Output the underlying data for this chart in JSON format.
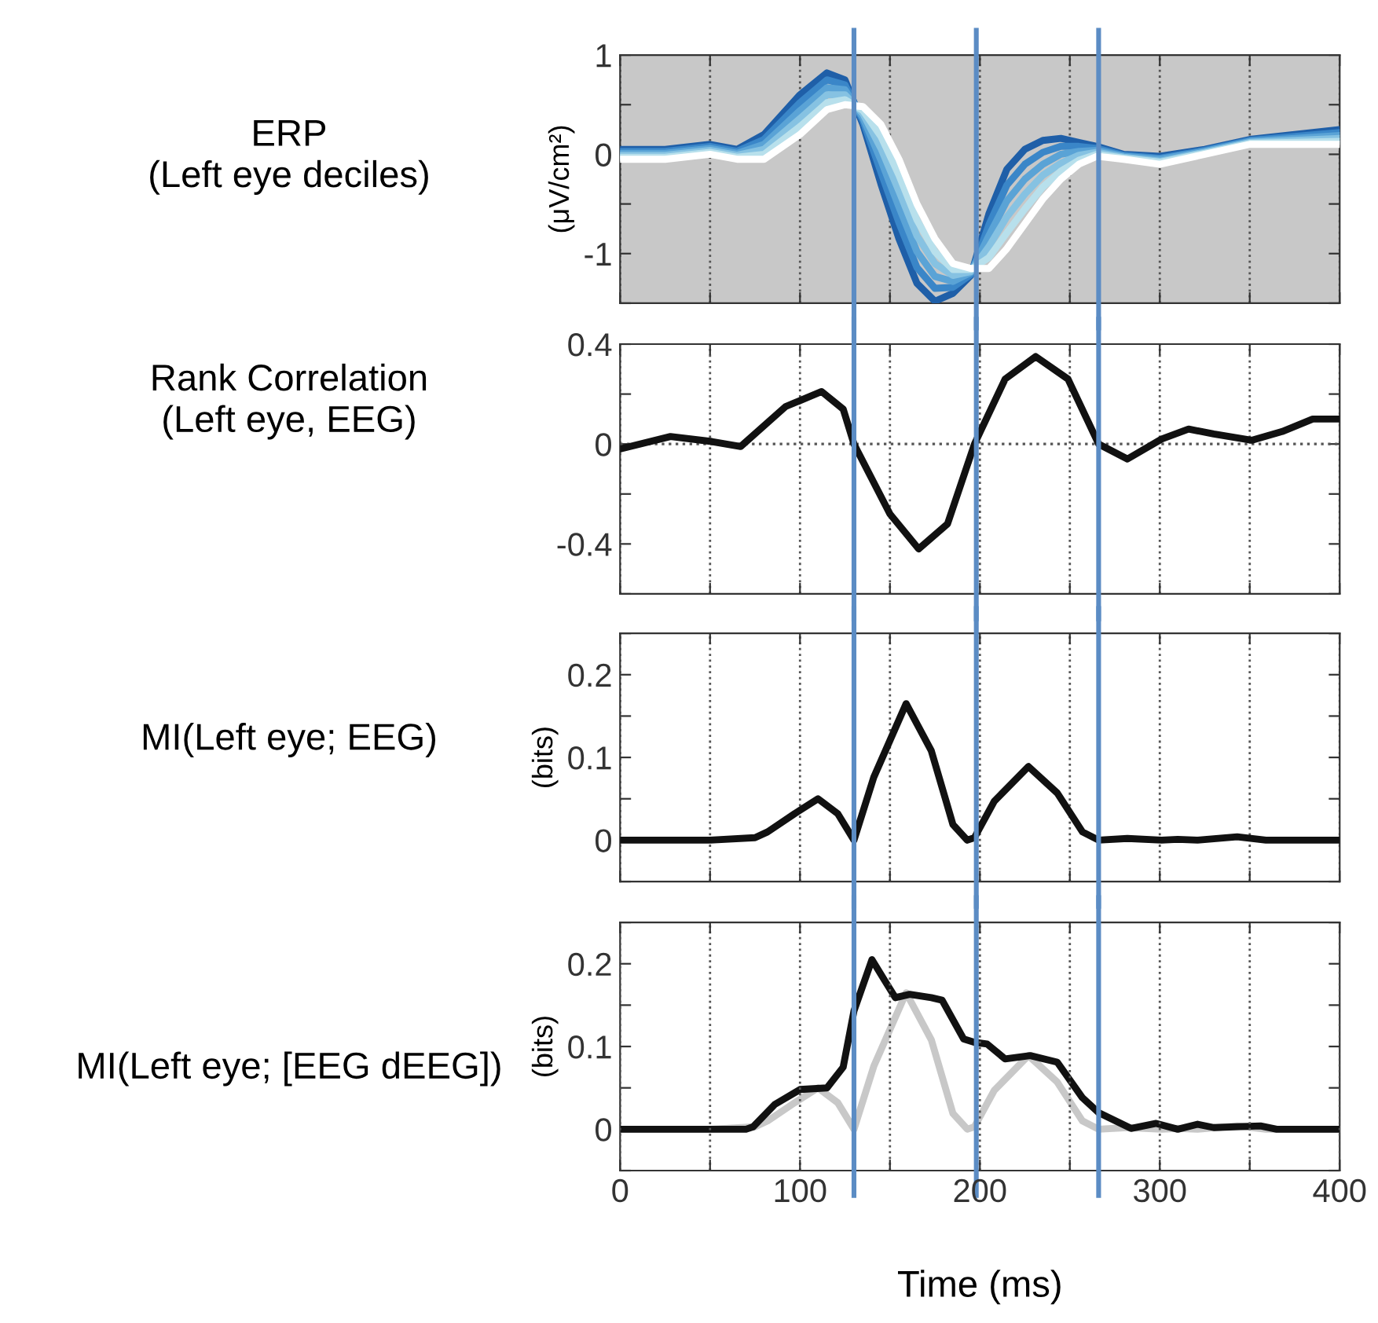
{
  "chart_data": [
    {
      "type": "line",
      "title": "ERP\n(Left eye deciles)",
      "ylabel": "(μV/cm²)",
      "tick_labels": "y",
      "grid": "x",
      "line_style": "solid",
      "x": [
        0,
        25,
        50,
        65,
        80,
        100,
        115,
        125,
        135,
        145,
        155,
        165,
        175,
        185,
        195,
        205,
        215,
        225,
        235,
        245,
        255,
        265,
        280,
        300,
        325,
        350,
        375,
        400
      ],
      "series": [
        {
          "color": "#1f5fa8",
          "values": [
            0.05,
            0.05,
            0.1,
            0.05,
            0.2,
            0.6,
            0.82,
            0.75,
            0.3,
            -0.3,
            -0.85,
            -1.3,
            -1.48,
            -1.4,
            -1.22,
            -0.6,
            -0.15,
            0.05,
            0.14,
            0.16,
            0.12,
            0.08,
            0.0,
            -0.02,
            0.05,
            0.15,
            0.2,
            0.25
          ]
        },
        {
          "color": "#3a86c8",
          "values": [
            0.03,
            0.03,
            0.08,
            0.03,
            0.15,
            0.52,
            0.75,
            0.7,
            0.34,
            -0.18,
            -0.69,
            -1.14,
            -1.35,
            -1.34,
            -1.21,
            -0.71,
            -0.31,
            -0.1,
            0.02,
            0.08,
            0.08,
            0.06,
            -0.01,
            -0.04,
            0.04,
            0.14,
            0.18,
            0.22
          ]
        },
        {
          "color": "#5aa3d6",
          "values": [
            0.01,
            0.01,
            0.06,
            0.01,
            0.1,
            0.44,
            0.67,
            0.65,
            0.37,
            -0.06,
            -0.53,
            -0.98,
            -1.23,
            -1.28,
            -1.19,
            -0.82,
            -0.47,
            -0.25,
            -0.1,
            0,
            0.03,
            0.04,
            -0.02,
            -0.05,
            0.03,
            0.13,
            0.16,
            0.19
          ]
        },
        {
          "color": "#86c2e2",
          "values": [
            -0.01,
            -0.01,
            0.04,
            -0.01,
            0.05,
            0.36,
            0.6,
            0.6,
            0.41,
            0.06,
            -0.37,
            -0.82,
            -1.1,
            -1.22,
            -1.18,
            -0.93,
            -0.63,
            -0.4,
            -0.21,
            -0.09,
            -0.01,
            0.02,
            -0.03,
            -0.07,
            0.02,
            0.12,
            0.14,
            0.16
          ]
        },
        {
          "color": "#b8e0ec",
          "values": [
            -0.03,
            -0.03,
            0.02,
            -0.03,
            0.0,
            0.28,
            0.52,
            0.55,
            0.44,
            0.18,
            -0.21,
            -0.66,
            -0.98,
            -1.16,
            -1.16,
            -1.04,
            -0.79,
            -0.55,
            -0.33,
            -0.17,
            -0.06,
            0.0,
            -0.04,
            -0.08,
            0.01,
            0.11,
            0.12,
            0.13
          ]
        },
        {
          "color": "#ffffff",
          "values": [
            -0.05,
            -0.05,
            0.0,
            -0.05,
            -0.05,
            0.2,
            0.45,
            0.5,
            0.48,
            0.3,
            -0.05,
            -0.5,
            -0.85,
            -1.1,
            -1.15,
            -1.15,
            -0.95,
            -0.7,
            -0.45,
            -0.25,
            -0.1,
            -0.02,
            -0.05,
            -0.1,
            0.0,
            0.1,
            0.1,
            0.1
          ]
        }
      ],
      "xlim": [
        0,
        400
      ],
      "xticks": [
        0,
        {
          "value": 50,
          "label": null
        },
        100,
        {
          "value": 150,
          "label": null
        },
        200,
        {
          "value": 250,
          "label": null
        },
        300,
        {
          "value": 350,
          "label": null
        },
        400
      ],
      "ylim": [
        -1.5,
        1
      ],
      "yticks": [
        {
          "value": -1.5,
          "label": null
        },
        -1,
        {
          "value": -0.5,
          "label": null
        },
        0,
        {
          "value": 0.5,
          "label": null
        },
        1
      ],
      "bands": [
        {
          "axis": "x",
          "from": 0,
          "to": 400,
          "color": "#c8c8c8"
        }
      ],
      "ref_lines": [
        {
          "axis": "x",
          "value": 130,
          "color": "#5b8cc4"
        },
        {
          "axis": "x",
          "value": 198,
          "color": "#5b8cc4"
        },
        {
          "axis": "x",
          "value": 266,
          "color": "#5b8cc4"
        }
      ]
    },
    {
      "type": "line",
      "title": "Rank Correlation\n(Left eye, EEG)",
      "tick_labels": "y",
      "grid": "x",
      "line_style": "solid",
      "x": [
        0,
        28,
        51,
        67,
        92,
        112,
        124,
        130,
        150,
        166,
        182,
        197,
        214,
        231,
        249,
        266,
        282,
        301,
        316,
        330,
        351,
        368,
        385,
        400
      ],
      "series": [
        {
          "color": "#111111",
          "values": [
            -0.02,
            0.03,
            0.01,
            -0.01,
            0.15,
            0.21,
            0.14,
            0,
            -0.28,
            -0.42,
            -0.32,
            0,
            0.26,
            0.35,
            0.26,
            0,
            -0.06,
            0.02,
            0.06,
            0.04,
            0.015,
            0.05,
            0.1,
            0.1
          ]
        }
      ],
      "xlim": [
        0,
        400
      ],
      "xticks": [
        0,
        {
          "value": 50,
          "label": null
        },
        100,
        {
          "value": 150,
          "label": null
        },
        200,
        {
          "value": 250,
          "label": null
        },
        300,
        {
          "value": 350,
          "label": null
        },
        400
      ],
      "ylim": [
        -0.6,
        0.4
      ],
      "yticks": [
        {
          "value": -0.6,
          "label": null
        },
        -0.4,
        {
          "value": -0.2,
          "label": null
        },
        0,
        {
          "value": 0.2,
          "label": null
        },
        0.4
      ],
      "ref_lines": [
        {
          "axis": "y",
          "value": 0,
          "color": "#555555",
          "line_style": "dotted"
        },
        {
          "axis": "x",
          "value": 130,
          "color": "#5b8cc4"
        },
        {
          "axis": "x",
          "value": 198,
          "color": "#5b8cc4"
        },
        {
          "axis": "x",
          "value": 266,
          "color": "#5b8cc4"
        }
      ]
    },
    {
      "type": "line",
      "title": "MI(Left eye; EEG)",
      "ylabel": "(bits)",
      "tick_labels": "y",
      "grid": "x",
      "line_style": "solid",
      "x": [
        0,
        50,
        75,
        82,
        97,
        110,
        121,
        130,
        141,
        159,
        173,
        185,
        193,
        197,
        208,
        227,
        243,
        257,
        266,
        282,
        301,
        310,
        321,
        343,
        359,
        400
      ],
      "series": [
        {
          "color": "#111111",
          "values": [
            0,
            0,
            0.003,
            0.01,
            0.032,
            0.05,
            0.032,
            0,
            0.076,
            0.165,
            0.108,
            0.019,
            0,
            0.003,
            0.047,
            0.089,
            0.057,
            0.01,
            0,
            0.002,
            0,
            0.001,
            0,
            0.004,
            0,
            0
          ]
        }
      ],
      "xlim": [
        0,
        400
      ],
      "xticks": [
        0,
        {
          "value": 50,
          "label": null
        },
        100,
        {
          "value": 150,
          "label": null
        },
        200,
        {
          "value": 250,
          "label": null
        },
        300,
        {
          "value": 350,
          "label": null
        },
        400
      ],
      "ylim": [
        -0.05,
        0.25
      ],
      "yticks": [
        {
          "value": -0.05,
          "label": null
        },
        0,
        {
          "value": 0.05,
          "label": null
        },
        0.1,
        {
          "value": 0.15,
          "label": null
        },
        0.2,
        {
          "value": 0.25,
          "label": null
        }
      ],
      "ref_lines": [
        {
          "axis": "x",
          "value": 130,
          "color": "#5b8cc4"
        },
        {
          "axis": "x",
          "value": 198,
          "color": "#5b8cc4"
        },
        {
          "axis": "x",
          "value": 266,
          "color": "#5b8cc4"
        }
      ]
    },
    {
      "type": "line",
      "title": "MI(Left eye; [EEG dEEG])",
      "ylabel": "(bits)",
      "xlabel": "Time (ms)",
      "grid": "x",
      "line_style": "solid",
      "series": [
        {
          "color": "#c8c8c8",
          "x": [
            0,
            50,
            75,
            82,
            97,
            110,
            121,
            130,
            141,
            159,
            173,
            185,
            193,
            197,
            208,
            227,
            243,
            257,
            266,
            282,
            301,
            310,
            321,
            343,
            359,
            400
          ],
          "values": [
            0,
            0,
            0.003,
            0.01,
            0.032,
            0.05,
            0.032,
            0,
            0.076,
            0.165,
            0.108,
            0.019,
            0,
            0.003,
            0.047,
            0.089,
            0.057,
            0.01,
            0,
            0.002,
            0,
            0.001,
            0,
            0.004,
            0,
            0
          ]
        },
        {
          "color": "#111111",
          "x": [
            0,
            70,
            74,
            86,
            100,
            115,
            124,
            130,
            140,
            147,
            153,
            161,
            173,
            179,
            191,
            197,
            204,
            214,
            228,
            243,
            257,
            266,
            284,
            298,
            310,
            321,
            330,
            356,
            365,
            400
          ],
          "values": [
            0,
            0,
            0.003,
            0.03,
            0.048,
            0.05,
            0.075,
            0.143,
            0.205,
            0.18,
            0.159,
            0.163,
            0.159,
            0.156,
            0.109,
            0.105,
            0.103,
            0.085,
            0.089,
            0.081,
            0.038,
            0.02,
            0.001,
            0.007,
            0,
            0.006,
            0.002,
            0.004,
            0,
            0
          ]
        }
      ],
      "xlim": [
        0,
        400
      ],
      "xticks": [
        0,
        {
          "value": 50,
          "label": null
        },
        100,
        {
          "value": 150,
          "label": null
        },
        200,
        {
          "value": 250,
          "label": null
        },
        300,
        {
          "value": 350,
          "label": null
        },
        400
      ],
      "ylim": [
        -0.05,
        0.25
      ],
      "yticks": [
        {
          "value": -0.05,
          "label": null
        },
        0,
        {
          "value": 0.05,
          "label": null
        },
        0.1,
        {
          "value": 0.15,
          "label": null
        },
        0.2,
        {
          "value": 0.25,
          "label": null
        }
      ],
      "ref_lines": [
        {
          "axis": "x",
          "value": 130,
          "color": "#5b8cc4"
        },
        {
          "axis": "x",
          "value": 198,
          "color": "#5b8cc4"
        },
        {
          "axis": "x",
          "value": 266,
          "color": "#5b8cc4"
        }
      ]
    }
  ]
}
